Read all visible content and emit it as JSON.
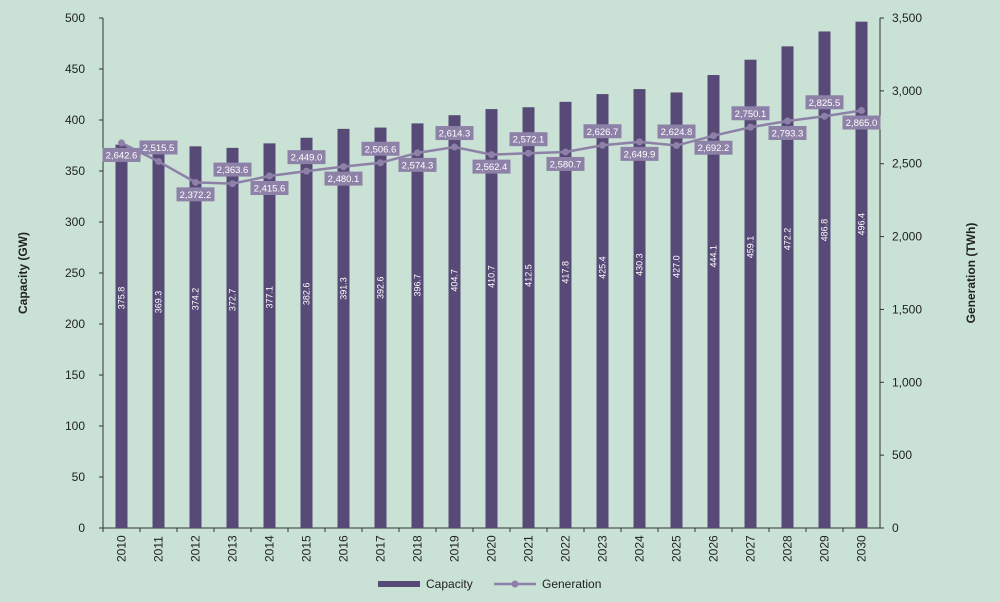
{
  "chart_data": {
    "type": "bar",
    "categories": [
      "2010",
      "2011",
      "2012",
      "2013",
      "2014",
      "2015",
      "2016",
      "2017",
      "2018",
      "2019",
      "2020",
      "2021",
      "2022",
      "2023",
      "2024",
      "2025",
      "2026",
      "2027",
      "2028",
      "2029",
      "2030"
    ],
    "series": [
      {
        "name": "Capacity",
        "type": "bar",
        "axis": "left",
        "values": [
          375.8,
          369.3,
          374.2,
          372.7,
          377.1,
          382.6,
          391.3,
          392.6,
          396.7,
          404.7,
          410.7,
          412.5,
          417.8,
          425.4,
          430.3,
          427.0,
          444.1,
          459.1,
          472.2,
          486.8,
          496.4
        ],
        "labels": [
          "375.8",
          "369.3",
          "374.2",
          "372.7",
          "377.1",
          "382.6",
          "391.3",
          "392.6",
          "396.7",
          "404.7",
          "410.7",
          "412.5",
          "417.8",
          "425.4",
          "430.3",
          "427.0",
          "444.1",
          "459.1",
          "472.2",
          "486.8",
          "496.4"
        ]
      },
      {
        "name": "Generation",
        "type": "line",
        "axis": "right",
        "values": [
          2642.6,
          2515.5,
          2372.2,
          2363.6,
          2415.6,
          2449.0,
          2480.1,
          2506.6,
          2574.3,
          2614.3,
          2562.4,
          2572.1,
          2580.7,
          2626.7,
          2649.9,
          2624.8,
          2692.2,
          2750.1,
          2793.3,
          2825.5,
          2865.0
        ],
        "labels": [
          "2,642.6",
          "2,515.5",
          "2,372.2",
          "2,363.6",
          "2,415.6",
          "2,449.0",
          "2,480.1",
          "2,506.6",
          "2,574.3",
          "2,614.3",
          "2,562.4",
          "2,572.1",
          "2,580.7",
          "2,626.7",
          "2,649.9",
          "2,624.8",
          "2,692.2",
          "2,750.1",
          "2,793.3",
          "2,825.5",
          "2,865.0"
        ]
      }
    ],
    "ylabel": "Capacity (GW)",
    "y2label": "Generation (TWh)",
    "ylim": [
      0,
      500
    ],
    "y2lim": [
      0,
      3500
    ],
    "yticks": [
      "0",
      "50",
      "100",
      "150",
      "200",
      "250",
      "300",
      "350",
      "400",
      "450",
      "500"
    ],
    "y2ticks": [
      "0",
      "500",
      "1,000",
      "1,500",
      "2,000",
      "2,500",
      "3,000",
      "3,500"
    ],
    "grid": false,
    "legend": "bottom-center",
    "colors": {
      "bar": "#574a76",
      "line": "#8d81a8",
      "label_bg": "#8d81a8",
      "axis": "#333333"
    }
  }
}
